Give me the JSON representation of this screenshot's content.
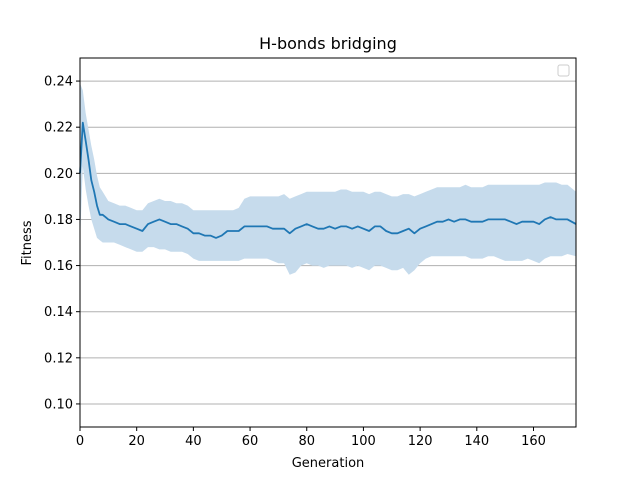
{
  "chart_data": {
    "type": "line",
    "title": "H-bonds bridging",
    "xlabel": "Generation",
    "ylabel": "Fitness",
    "xlim": [
      0,
      175
    ],
    "ylim": [
      0.09,
      0.25
    ],
    "xticks": [
      0,
      20,
      40,
      60,
      80,
      100,
      120,
      140,
      160
    ],
    "yticks": [
      0.1,
      0.12,
      0.14,
      0.16,
      0.18,
      0.2,
      0.22,
      0.24
    ],
    "xtick_labels": [
      "0",
      "20",
      "40",
      "60",
      "80",
      "100",
      "120",
      "140",
      "160"
    ],
    "ytick_labels": [
      "0.10",
      "0.12",
      "0.14",
      "0.16",
      "0.18",
      "0.20",
      "0.22",
      "0.24"
    ],
    "grid": "horizontal",
    "legend": {
      "placement": "top-right",
      "entries": []
    },
    "colors": {
      "line": "#1f77b4",
      "band": "#c6dbec",
      "grid": "#b0b0b0"
    },
    "series": [
      {
        "x": [
          0,
          1,
          2,
          3,
          4,
          5,
          6,
          7,
          8,
          9,
          10,
          12,
          14,
          16,
          18,
          20,
          22,
          24,
          26,
          28,
          30,
          32,
          34,
          36,
          38,
          40,
          42,
          44,
          46,
          48,
          50,
          52,
          54,
          56,
          58,
          60,
          62,
          64,
          66,
          68,
          70,
          72,
          74,
          76,
          78,
          80,
          82,
          84,
          86,
          88,
          90,
          92,
          94,
          96,
          98,
          100,
          102,
          104,
          106,
          108,
          110,
          112,
          114,
          116,
          118,
          120,
          122,
          124,
          126,
          128,
          130,
          132,
          134,
          136,
          138,
          140,
          142,
          144,
          146,
          148,
          150,
          152,
          154,
          156,
          158,
          160,
          162,
          164,
          166,
          168,
          170,
          172,
          175
        ],
        "values": [
          0.2,
          0.222,
          0.214,
          0.206,
          0.197,
          0.192,
          0.186,
          0.182,
          0.182,
          0.181,
          0.18,
          0.179,
          0.178,
          0.178,
          0.177,
          0.176,
          0.175,
          0.178,
          0.179,
          0.18,
          0.179,
          0.178,
          0.178,
          0.177,
          0.176,
          0.174,
          0.174,
          0.173,
          0.173,
          0.172,
          0.173,
          0.175,
          0.175,
          0.175,
          0.177,
          0.177,
          0.177,
          0.177,
          0.177,
          0.176,
          0.176,
          0.176,
          0.174,
          0.176,
          0.177,
          0.178,
          0.177,
          0.176,
          0.176,
          0.177,
          0.176,
          0.177,
          0.177,
          0.176,
          0.177,
          0.176,
          0.175,
          0.177,
          0.177,
          0.175,
          0.174,
          0.174,
          0.175,
          0.176,
          0.174,
          0.176,
          0.177,
          0.178,
          0.179,
          0.179,
          0.18,
          0.179,
          0.18,
          0.18,
          0.179,
          0.179,
          0.179,
          0.18,
          0.18,
          0.18,
          0.18,
          0.179,
          0.178,
          0.179,
          0.179,
          0.179,
          0.178,
          0.18,
          0.181,
          0.18,
          0.18,
          0.18,
          0.178
        ],
        "lower": [
          0.17,
          0.203,
          0.193,
          0.186,
          0.18,
          0.176,
          0.172,
          0.171,
          0.17,
          0.17,
          0.17,
          0.17,
          0.169,
          0.168,
          0.167,
          0.166,
          0.166,
          0.168,
          0.168,
          0.167,
          0.167,
          0.166,
          0.166,
          0.166,
          0.165,
          0.163,
          0.162,
          0.162,
          0.162,
          0.162,
          0.162,
          0.162,
          0.162,
          0.162,
          0.163,
          0.163,
          0.163,
          0.163,
          0.163,
          0.162,
          0.161,
          0.161,
          0.156,
          0.157,
          0.16,
          0.161,
          0.16,
          0.16,
          0.159,
          0.16,
          0.16,
          0.16,
          0.16,
          0.159,
          0.16,
          0.159,
          0.158,
          0.16,
          0.16,
          0.159,
          0.158,
          0.158,
          0.159,
          0.156,
          0.158,
          0.161,
          0.163,
          0.164,
          0.164,
          0.164,
          0.164,
          0.164,
          0.164,
          0.164,
          0.163,
          0.163,
          0.163,
          0.164,
          0.164,
          0.163,
          0.162,
          0.162,
          0.162,
          0.162,
          0.163,
          0.162,
          0.161,
          0.163,
          0.164,
          0.164,
          0.164,
          0.165,
          0.164
        ],
        "upper": [
          0.239,
          0.236,
          0.226,
          0.219,
          0.212,
          0.206,
          0.199,
          0.194,
          0.192,
          0.19,
          0.188,
          0.187,
          0.186,
          0.186,
          0.185,
          0.184,
          0.184,
          0.187,
          0.188,
          0.189,
          0.188,
          0.188,
          0.187,
          0.187,
          0.186,
          0.184,
          0.184,
          0.184,
          0.184,
          0.184,
          0.184,
          0.184,
          0.184,
          0.185,
          0.189,
          0.19,
          0.19,
          0.19,
          0.19,
          0.19,
          0.19,
          0.191,
          0.189,
          0.19,
          0.191,
          0.192,
          0.192,
          0.192,
          0.192,
          0.192,
          0.192,
          0.193,
          0.193,
          0.192,
          0.192,
          0.192,
          0.191,
          0.192,
          0.192,
          0.191,
          0.19,
          0.19,
          0.191,
          0.191,
          0.19,
          0.191,
          0.192,
          0.193,
          0.194,
          0.194,
          0.194,
          0.194,
          0.194,
          0.195,
          0.194,
          0.194,
          0.194,
          0.195,
          0.195,
          0.195,
          0.195,
          0.195,
          0.195,
          0.195,
          0.195,
          0.195,
          0.195,
          0.196,
          0.196,
          0.196,
          0.195,
          0.195,
          0.192
        ]
      }
    ]
  }
}
